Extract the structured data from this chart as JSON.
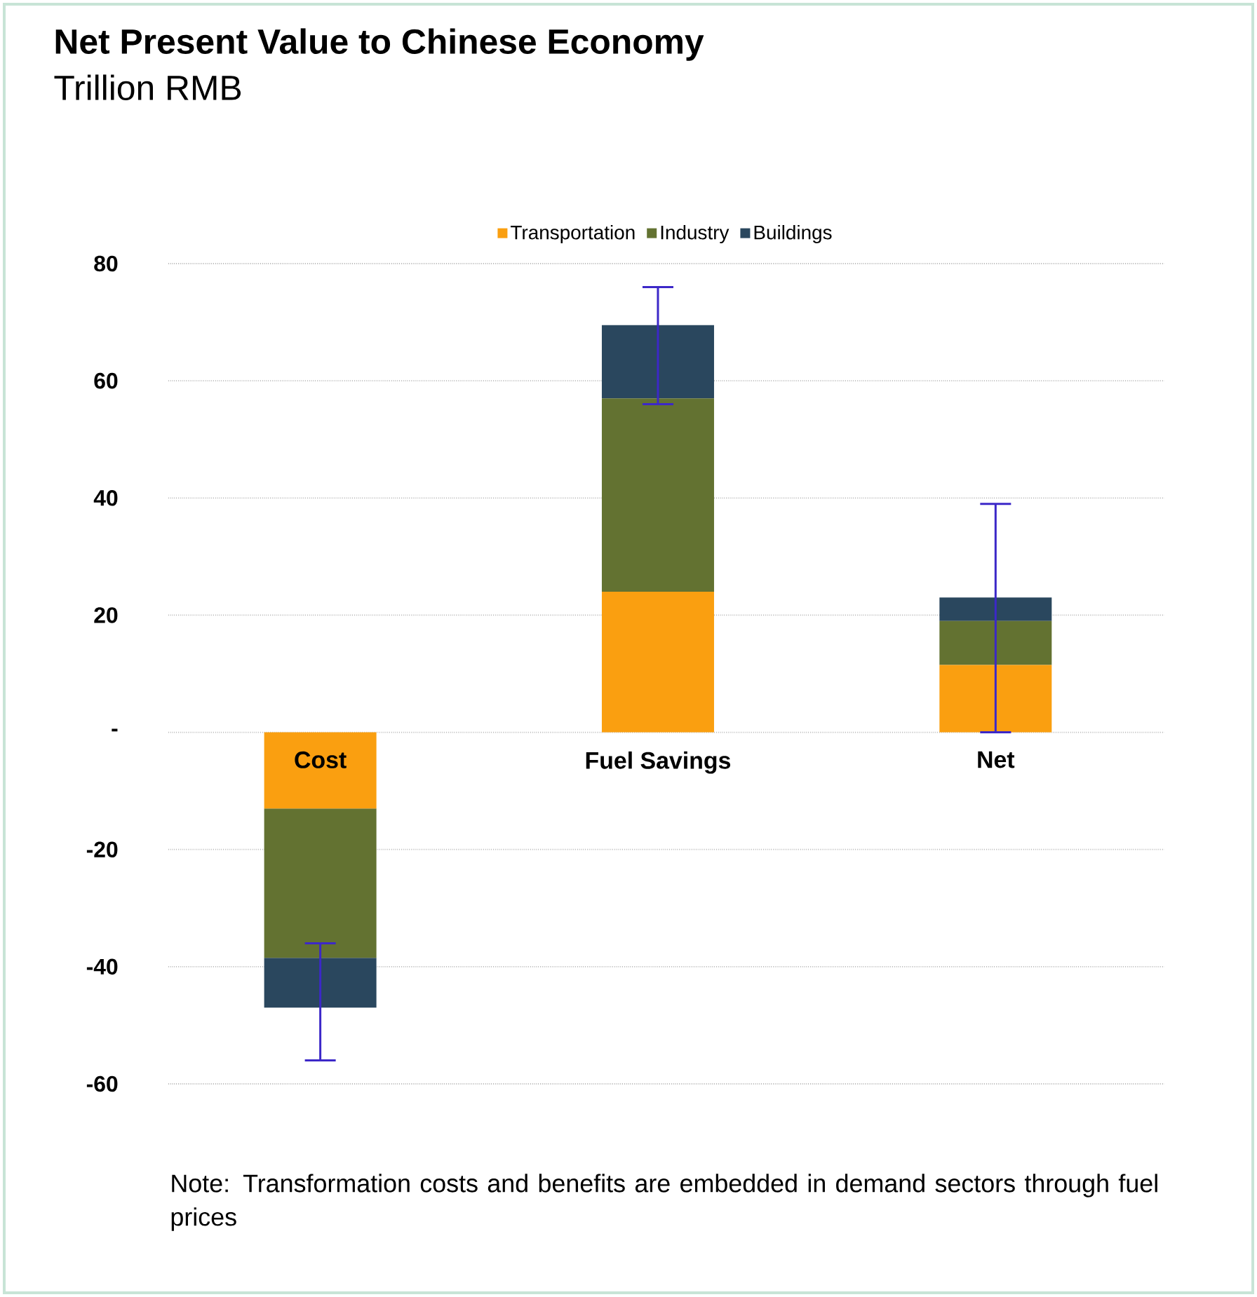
{
  "chart_data": {
    "type": "bar",
    "title": "Net Present Value to Chinese Economy",
    "subtitle": "Trillion RMB",
    "categories": [
      "Cost",
      "Fuel Savings",
      "Net"
    ],
    "stacked": true,
    "series": [
      {
        "name": "Transportation",
        "color": "#fa9f10",
        "values": [
          -13,
          24,
          11.5
        ]
      },
      {
        "name": "Industry",
        "color": "#637231",
        "values": [
          -25.5,
          33,
          7.5
        ]
      },
      {
        "name": "Buildings",
        "color": "#2a475e",
        "values": [
          -8.5,
          12.5,
          4
        ],
        "errors": [
          [
            -56,
            -36
          ],
          [
            56,
            76
          ],
          [
            0,
            39
          ]
        ]
      }
    ],
    "ylim": [
      -60,
      80
    ],
    "yticks": [
      -60,
      -40,
      -20,
      {
        "value": 0,
        "label": "-"
      },
      20,
      40,
      60,
      80
    ],
    "grid": "y",
    "legend": "top",
    "annotations": [
      "Note: Transformation costs and benefits are embedded in demand sectors through fuel prices"
    ]
  }
}
